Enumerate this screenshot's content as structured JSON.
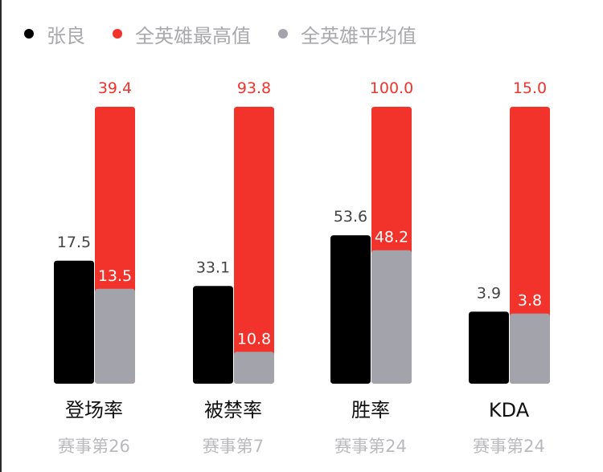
{
  "legend": [
    {
      "label": "张良",
      "color": "#000000"
    },
    {
      "label": "全英雄最高值",
      "color": "#f2332b"
    },
    {
      "label": "全英雄平均值",
      "color": "#a3a4ab"
    }
  ],
  "chart_data": {
    "type": "bar",
    "categories": [
      "登场率",
      "被禁率",
      "胜率",
      "KDA"
    ],
    "subcategories": [
      "赛事第26",
      "赛事第7",
      "赛事第24",
      "赛事第24"
    ],
    "series": [
      {
        "name": "张良",
        "values": [
          17.5,
          33.1,
          53.6,
          3.9
        ],
        "labels": [
          "17.5",
          "33.1",
          "53.6",
          "3.9"
        ],
        "color": "#000000"
      },
      {
        "name": "全英雄最高值",
        "values": [
          39.4,
          93.8,
          100.0,
          15.0
        ],
        "labels": [
          "39.4",
          "93.8",
          "100.0",
          "15.0"
        ],
        "color": "#f2332b"
      },
      {
        "name": "全英雄平均值",
        "values": [
          13.5,
          10.8,
          48.2,
          3.8
        ],
        "labels": [
          "13.5",
          "10.8",
          "48.2",
          "3.8"
        ],
        "color": "#a3a4ab"
      }
    ],
    "value_label_colors": {
      "above": "#444444",
      "top": "#f2332b",
      "inside": "#ffffff"
    },
    "legend_position": "top-left"
  }
}
